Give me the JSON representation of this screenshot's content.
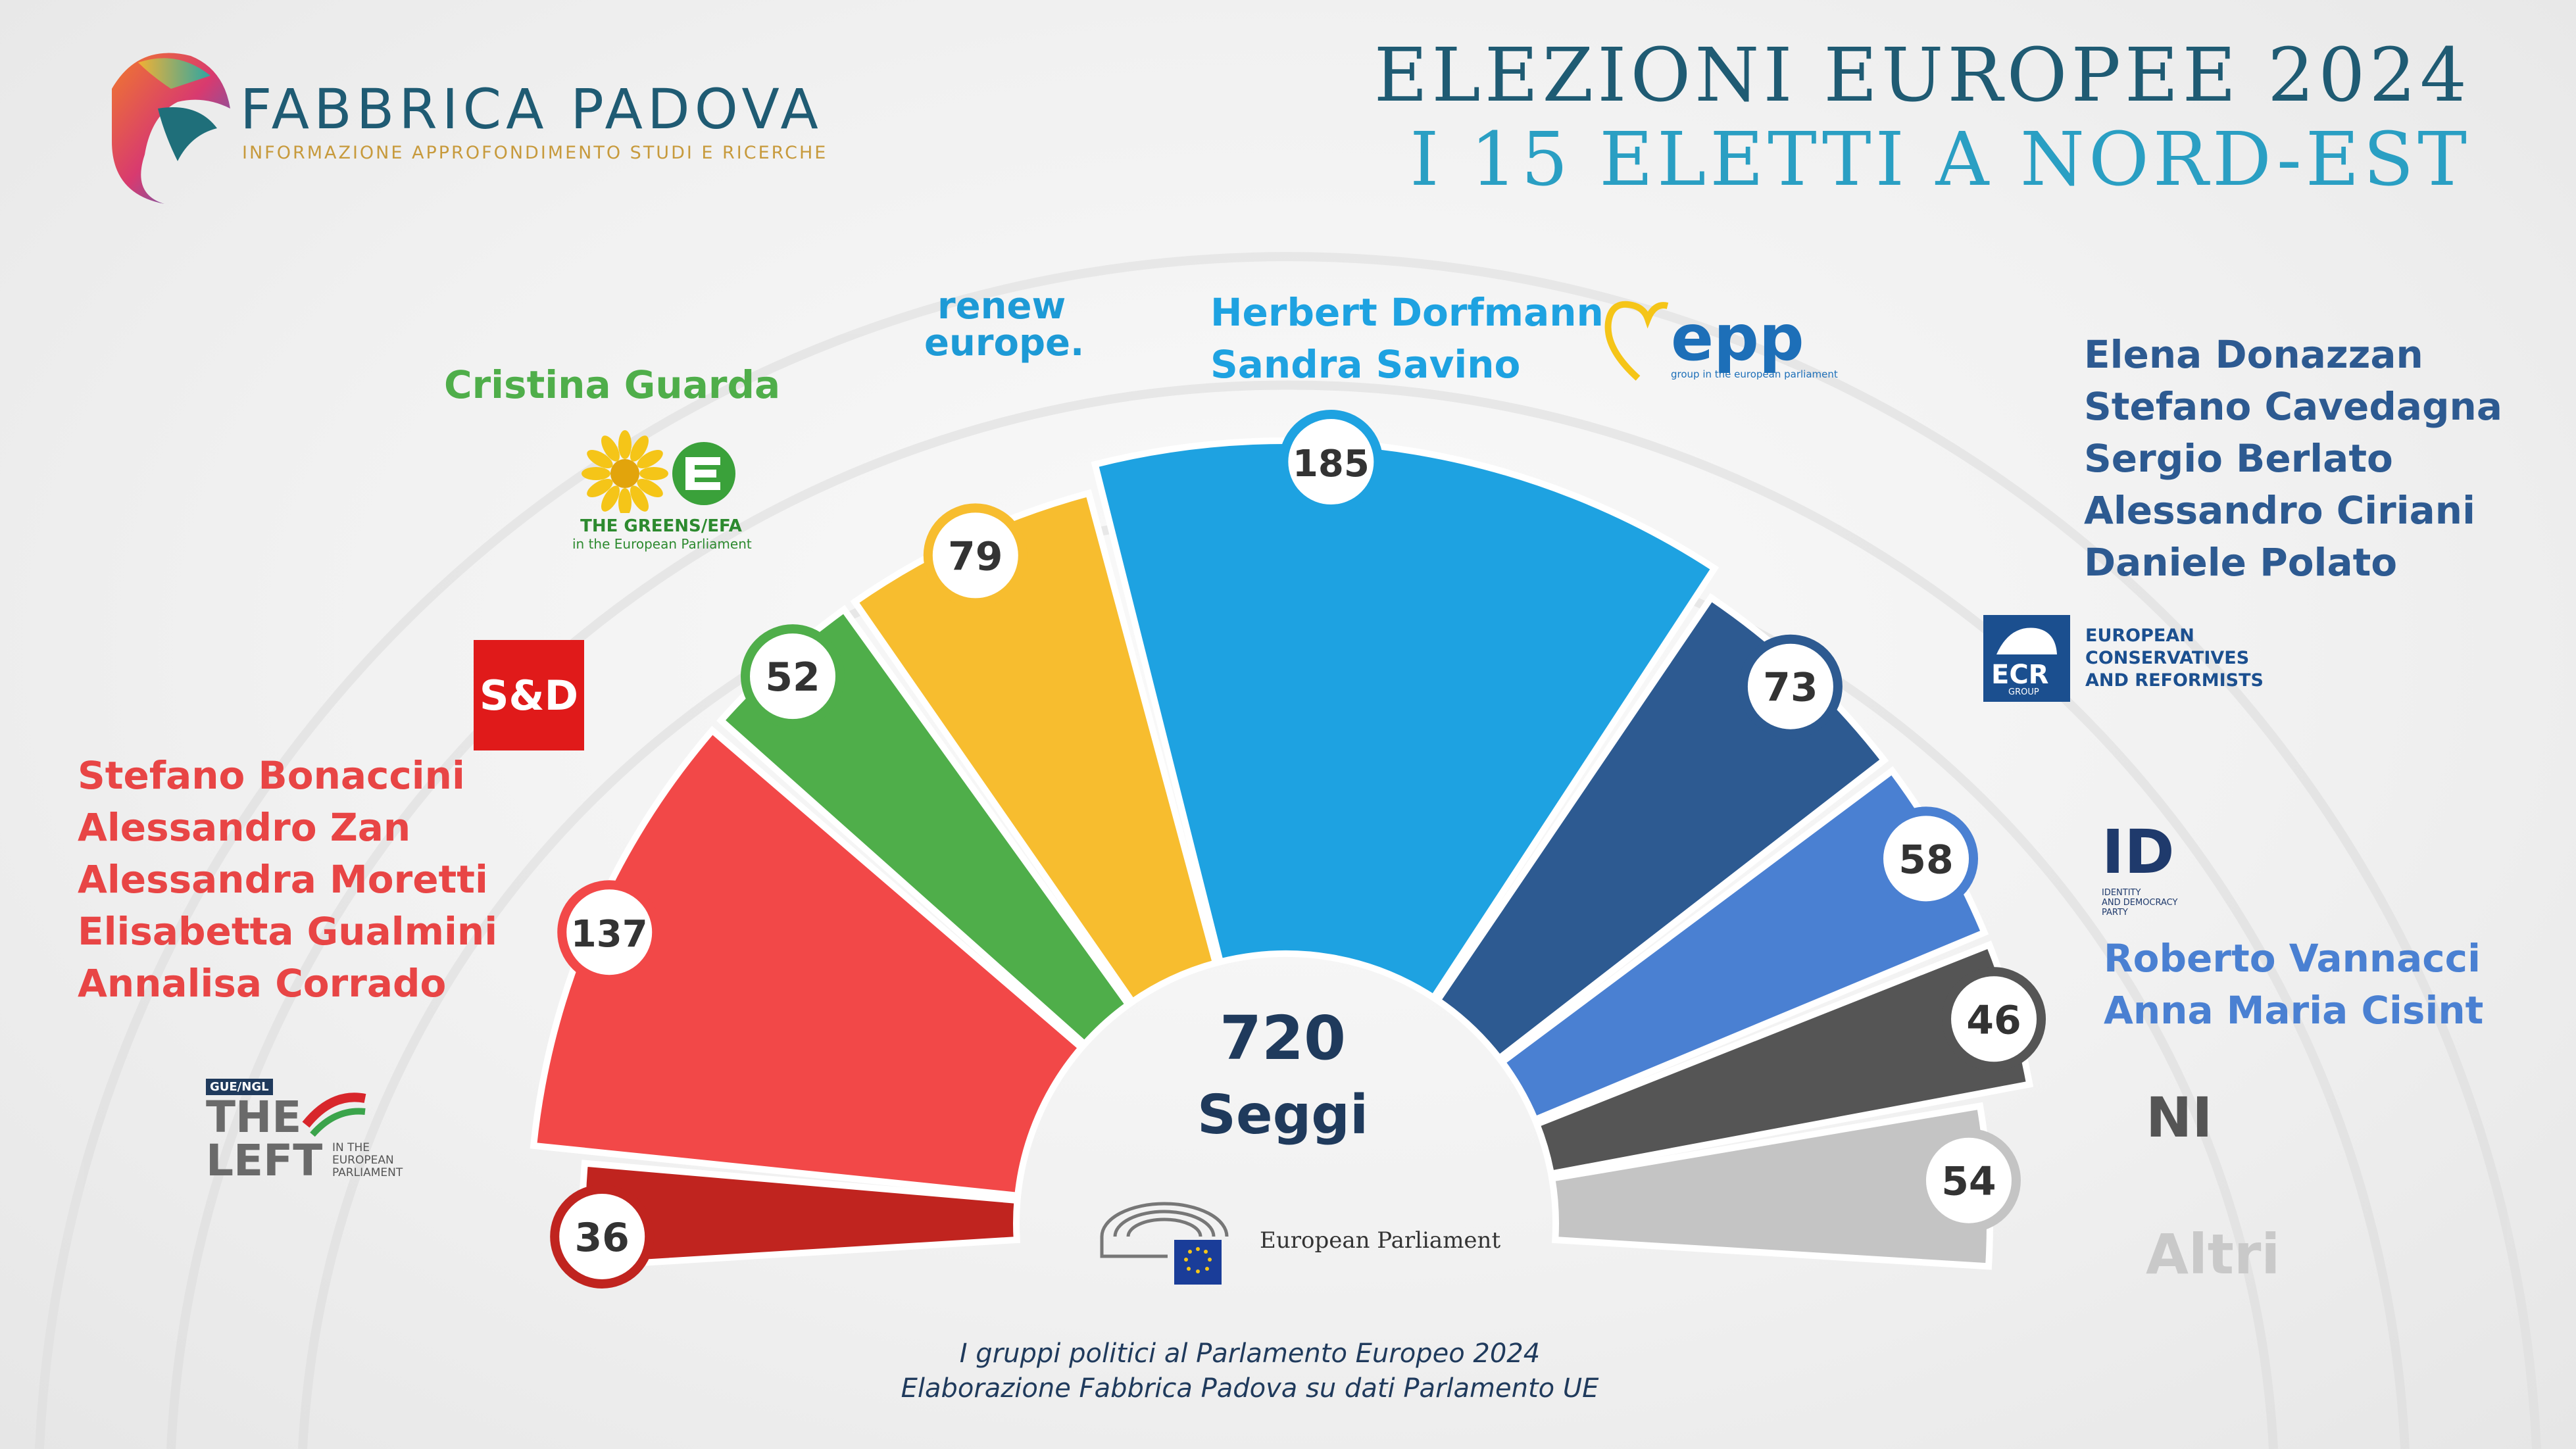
{
  "brand": {
    "name": "FABBRICA PADOVA",
    "tagline": "INFORMAZIONE APPROFONDIMENTO STUDI E RICERCHE"
  },
  "title": {
    "line1": "ELEZIONI EUROPEE 2024",
    "line2": "I 15 ELETTI A NORD-EST"
  },
  "total": {
    "value": "720",
    "label": "Seggi"
  },
  "footer": {
    "line1": "I gruppi politici al Parlamento Europeo 2024",
    "line2": "Elaborazione Fabbrica Padova su dati Parlamento UE"
  },
  "party_logos": {
    "sd": "S&D",
    "renew_line1": "renew",
    "renew_line2": "europe.",
    "greens_line1": "THE GREENS/EFA",
    "greens_line2": "in the European Parliament",
    "left_gue": "GUE/NGL",
    "left_the": "THE",
    "left_left": "LEFT",
    "left_sub": [
      "IN THE",
      "EUROPEAN",
      "PARLIAMENT"
    ],
    "epp": "epp",
    "epp_sub": "group in the european parliament",
    "ecr_abbr": "ECR",
    "ecr_group": "GROUP",
    "ecr_name": [
      "EUROPEAN",
      "CONSERVATIVES",
      "AND REFORMISTS"
    ],
    "id_abbr": "ID",
    "id_name": [
      "IDENTITY",
      "AND DEMOCRACY",
      "PARTY"
    ],
    "ep_name": "European Parliament"
  },
  "elected": {
    "sd": [
      "Stefano Bonaccini",
      "Alessandro Zan",
      "Alessandra Moretti",
      "Elisabetta Gualmini",
      "Annalisa Corrado"
    ],
    "greens": [
      "Cristina Guarda"
    ],
    "epp": [
      "Herbert Dorfmann",
      "Sandra Savino"
    ],
    "ecr": [
      "Elena Donazzan",
      "Stefano Cavedagna",
      "Sergio Berlato",
      "Alessandro Ciriani",
      "Daniele Polato"
    ],
    "id": [
      "Roberto Vannacci",
      "Anna Maria Cisint"
    ]
  },
  "labels": {
    "ni": "NI",
    "altri": "Altri"
  },
  "colors": {
    "left": "#c0241f",
    "sd": "#f24848",
    "greens": "#4fae4a",
    "renew": "#f7bd2f",
    "epp": "#1ea2e1",
    "ecr": "#2d5a91",
    "id": "#4a80d2",
    "ni": "#555555",
    "altri": "#c4c4c4",
    "title_dark": "#1f5b73",
    "title_light": "#2a9fc3",
    "text_dark": "#1f3a5c"
  },
  "chart_data": {
    "type": "parliament-semicircle",
    "total_seats": 720,
    "series": [
      {
        "name": "The Left",
        "values": [
          36
        ]
      },
      {
        "name": "S&D",
        "values": [
          137
        ]
      },
      {
        "name": "Greens/EFA",
        "values": [
          52
        ]
      },
      {
        "name": "Renew Europe",
        "values": [
          79
        ]
      },
      {
        "name": "EPP",
        "values": [
          185
        ]
      },
      {
        "name": "ECR",
        "values": [
          73
        ]
      },
      {
        "name": "ID",
        "values": [
          58
        ]
      },
      {
        "name": "NI",
        "values": [
          46
        ]
      },
      {
        "name": "Altri",
        "values": [
          54
        ]
      }
    ]
  }
}
